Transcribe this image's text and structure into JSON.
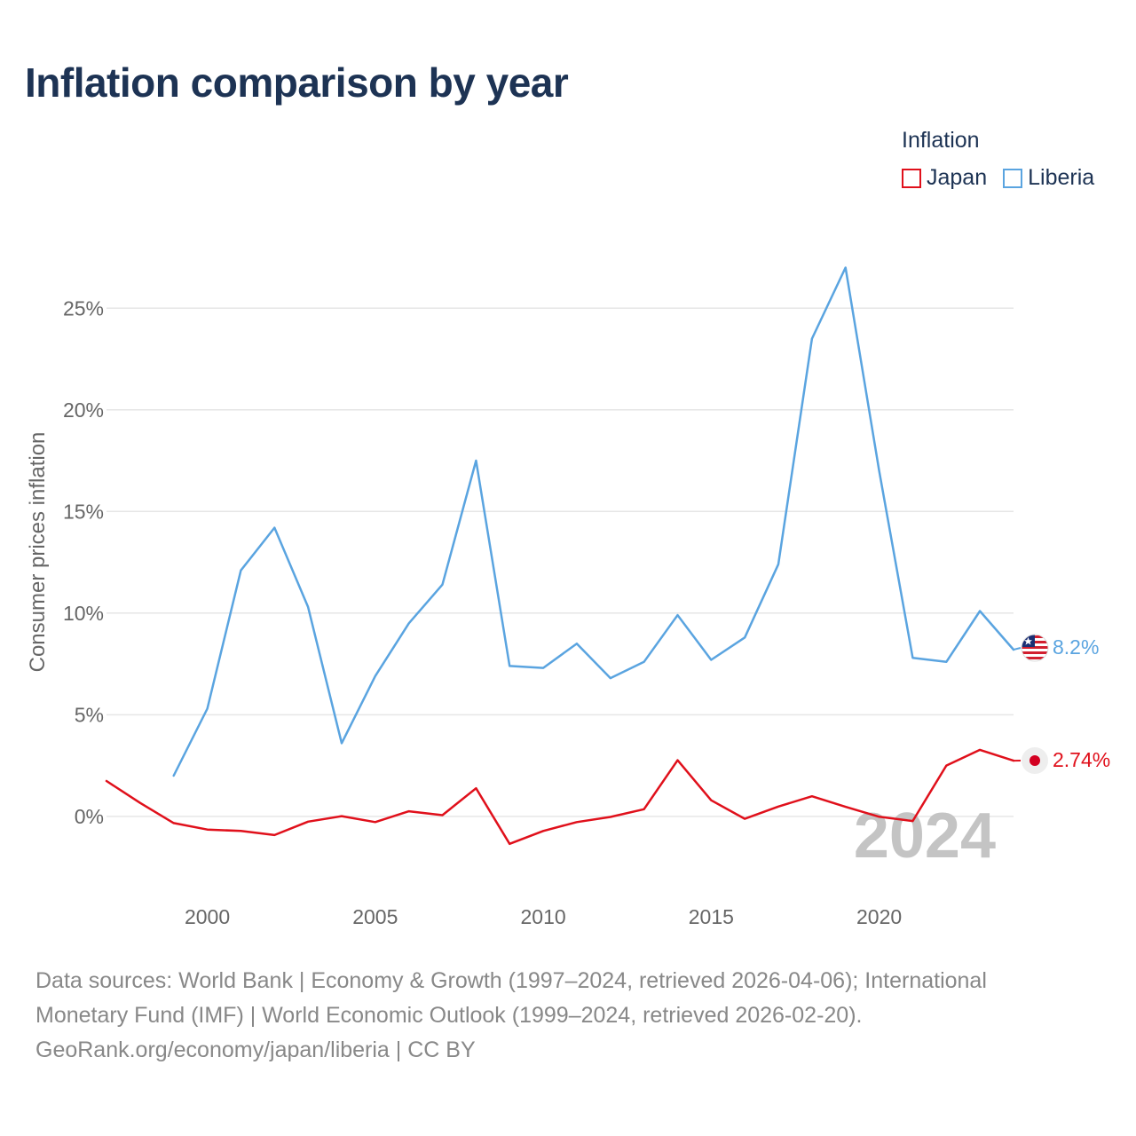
{
  "title": "Inflation comparison by year",
  "legend": {
    "title": "Inflation",
    "items": [
      {
        "label": "Japan",
        "color": "#e0101b"
      },
      {
        "label": "Liberia",
        "color": "#5aa4e0"
      }
    ]
  },
  "chart_data": {
    "type": "line",
    "title": "Inflation comparison by year",
    "xlabel": "",
    "ylabel": "Consumer prices inflation",
    "xlim": [
      1997,
      2024
    ],
    "ylim": [
      -3.5,
      27.5
    ],
    "x_ticks": [
      2000,
      2005,
      2010,
      2015,
      2020
    ],
    "y_ticks": [
      {
        "value": 0,
        "label": "0%"
      },
      {
        "value": 5,
        "label": "5%"
      },
      {
        "value": 10,
        "label": "10%"
      },
      {
        "value": 15,
        "label": "15%"
      },
      {
        "value": 20,
        "label": "20%"
      },
      {
        "value": 25,
        "label": "25%"
      }
    ],
    "grid": true,
    "watermark_year": "2024",
    "series": [
      {
        "name": "Japan",
        "color": "#e0101b",
        "end_label": "2.74%",
        "x": [
          1997,
          1998,
          1999,
          2000,
          2001,
          2002,
          2003,
          2004,
          2005,
          2006,
          2007,
          2008,
          2009,
          2010,
          2011,
          2012,
          2013,
          2014,
          2015,
          2016,
          2017,
          2018,
          2019,
          2020,
          2021,
          2022,
          2023,
          2024
        ],
        "values": [
          1.74,
          0.66,
          -0.33,
          -0.65,
          -0.72,
          -0.92,
          -0.26,
          0.01,
          -0.28,
          0.25,
          0.06,
          1.38,
          -1.35,
          -0.72,
          -0.28,
          -0.03,
          0.35,
          2.76,
          0.79,
          -0.12,
          0.48,
          0.99,
          0.47,
          -0.02,
          -0.23,
          2.5,
          3.27,
          2.74
        ]
      },
      {
        "name": "Liberia",
        "color": "#5aa4e0",
        "end_label": "8.2%",
        "x": [
          1999,
          2000,
          2001,
          2002,
          2003,
          2004,
          2005,
          2006,
          2007,
          2008,
          2009,
          2010,
          2011,
          2012,
          2013,
          2014,
          2015,
          2016,
          2017,
          2018,
          2019,
          2020,
          2021,
          2022,
          2023,
          2024
        ],
        "values": [
          2.0,
          5.3,
          12.1,
          14.2,
          10.3,
          3.6,
          6.9,
          9.5,
          11.4,
          17.5,
          7.4,
          7.3,
          8.5,
          6.8,
          7.6,
          9.9,
          7.7,
          8.8,
          12.4,
          23.5,
          27.0,
          17.0,
          7.8,
          7.6,
          10.1,
          8.2
        ]
      }
    ]
  },
  "footer": {
    "line1": "Data sources: World Bank | Economy & Growth (1997–2024, retrieved 2026-04-06); International",
    "line2": "Monetary Fund (IMF) | World Economic Outlook (1999–2024, retrieved 2026-02-20).",
    "line3": "GeoRank.org/economy/japan/liberia | CC BY"
  }
}
